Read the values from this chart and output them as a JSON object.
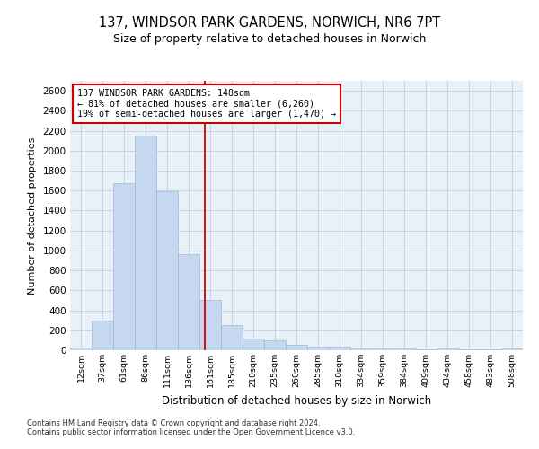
{
  "title": "137, WINDSOR PARK GARDENS, NORWICH, NR6 7PT",
  "subtitle": "Size of property relative to detached houses in Norwich",
  "xlabel": "Distribution of detached houses by size in Norwich",
  "ylabel": "Number of detached properties",
  "categories": [
    "12sqm",
    "37sqm",
    "61sqm",
    "86sqm",
    "111sqm",
    "136sqm",
    "161sqm",
    "185sqm",
    "210sqm",
    "235sqm",
    "260sqm",
    "285sqm",
    "310sqm",
    "334sqm",
    "359sqm",
    "384sqm",
    "409sqm",
    "434sqm",
    "458sqm",
    "483sqm",
    "508sqm"
  ],
  "values": [
    25,
    300,
    1670,
    2150,
    1595,
    960,
    500,
    250,
    120,
    100,
    50,
    35,
    35,
    20,
    20,
    20,
    5,
    20,
    5,
    5,
    20
  ],
  "bar_color": "#c5d8f0",
  "bar_edge_color": "#a0b8d8",
  "vline_x": 5.77,
  "vline_color": "#cc0000",
  "annotation_text": "137 WINDSOR PARK GARDENS: 148sqm\n← 81% of detached houses are smaller (6,260)\n19% of semi-detached houses are larger (1,470) →",
  "annotation_box_color": "#ffffff",
  "annotation_box_edge_color": "#cc0000",
  "ylim": [
    0,
    2700
  ],
  "yticks": [
    0,
    200,
    400,
    600,
    800,
    1000,
    1200,
    1400,
    1600,
    1800,
    2000,
    2200,
    2400,
    2600
  ],
  "background_color": "#ffffff",
  "plot_bg_color": "#e8f0f8",
  "grid_color": "#c8d4e0",
  "title_fontsize": 10.5,
  "subtitle_fontsize": 9,
  "footnote1": "Contains HM Land Registry data © Crown copyright and database right 2024.",
  "footnote2": "Contains public sector information licensed under the Open Government Licence v3.0."
}
